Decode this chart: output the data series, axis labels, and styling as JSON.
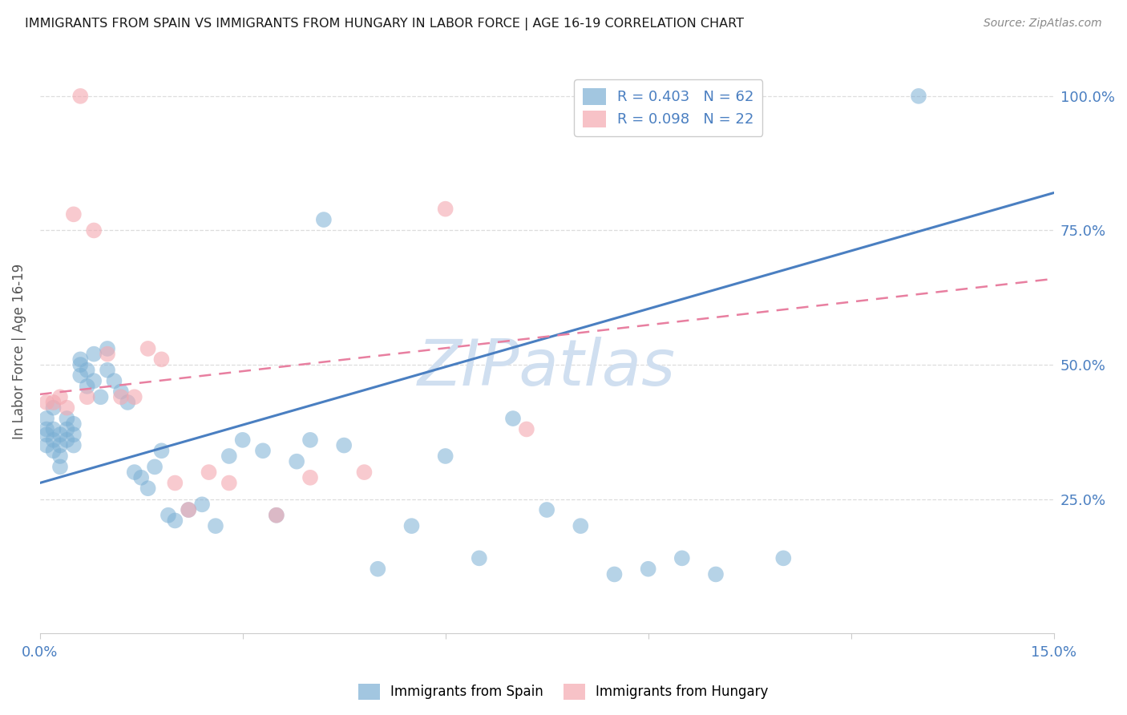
{
  "title": "IMMIGRANTS FROM SPAIN VS IMMIGRANTS FROM HUNGARY IN LABOR FORCE | AGE 16-19 CORRELATION CHART",
  "source": "Source: ZipAtlas.com",
  "ylabel": "In Labor Force | Age 16-19",
  "xlim": [
    0.0,
    0.15
  ],
  "ylim": [
    0.0,
    1.05
  ],
  "xticks": [
    0.0,
    0.03,
    0.06,
    0.09,
    0.12,
    0.15
  ],
  "yticks": [
    0.25,
    0.5,
    0.75,
    1.0
  ],
  "ytick_labels": [
    "25.0%",
    "50.0%",
    "75.0%",
    "100.0%"
  ],
  "xtick_labels": [
    "0.0%",
    "",
    "",
    "",
    "",
    "15.0%"
  ],
  "legend_blue_label": "R = 0.403   N = 62",
  "legend_pink_label": "R = 0.098   N = 22",
  "blue_color": "#7bafd4",
  "pink_color": "#f4a8b0",
  "line_blue_color": "#4a7fc1",
  "line_pink_color": "#e87fa0",
  "axis_label_color": "#4a7fc1",
  "title_color": "#1a1a1a",
  "source_color": "#888888",
  "watermark_text": "ZIPatlas",
  "watermark_color": "#d0dff0",
  "grid_color": "#dddddd",
  "blue_line_x0": 0.0,
  "blue_line_x1": 0.15,
  "blue_line_y0": 0.28,
  "blue_line_y1": 0.82,
  "pink_line_x0": 0.0,
  "pink_line_x1": 0.15,
  "pink_line_y0": 0.445,
  "pink_line_y1": 0.66,
  "blue_x": [
    0.001,
    0.001,
    0.001,
    0.001,
    0.002,
    0.002,
    0.002,
    0.002,
    0.003,
    0.003,
    0.003,
    0.003,
    0.004,
    0.004,
    0.004,
    0.005,
    0.005,
    0.005,
    0.006,
    0.006,
    0.006,
    0.007,
    0.007,
    0.008,
    0.008,
    0.009,
    0.01,
    0.01,
    0.011,
    0.012,
    0.013,
    0.014,
    0.015,
    0.016,
    0.017,
    0.018,
    0.019,
    0.02,
    0.022,
    0.024,
    0.026,
    0.028,
    0.03,
    0.033,
    0.035,
    0.038,
    0.04,
    0.042,
    0.045,
    0.05,
    0.055,
    0.06,
    0.065,
    0.07,
    0.075,
    0.08,
    0.085,
    0.09,
    0.095,
    0.1,
    0.11,
    0.13
  ],
  "blue_y": [
    0.37,
    0.38,
    0.35,
    0.4,
    0.36,
    0.38,
    0.34,
    0.42,
    0.37,
    0.35,
    0.33,
    0.31,
    0.4,
    0.38,
    0.36,
    0.37,
    0.39,
    0.35,
    0.5,
    0.48,
    0.51,
    0.46,
    0.49,
    0.52,
    0.47,
    0.44,
    0.53,
    0.49,
    0.47,
    0.45,
    0.43,
    0.3,
    0.29,
    0.27,
    0.31,
    0.34,
    0.22,
    0.21,
    0.23,
    0.24,
    0.2,
    0.33,
    0.36,
    0.34,
    0.22,
    0.32,
    0.36,
    0.77,
    0.35,
    0.12,
    0.2,
    0.33,
    0.14,
    0.4,
    0.23,
    0.2,
    0.11,
    0.12,
    0.14,
    0.11,
    0.14,
    1.0
  ],
  "pink_x": [
    0.001,
    0.002,
    0.003,
    0.004,
    0.005,
    0.006,
    0.007,
    0.008,
    0.01,
    0.012,
    0.014,
    0.016,
    0.018,
    0.02,
    0.022,
    0.025,
    0.028,
    0.035,
    0.04,
    0.048,
    0.06,
    0.072
  ],
  "pink_y": [
    0.43,
    0.43,
    0.44,
    0.42,
    0.78,
    1.0,
    0.44,
    0.75,
    0.52,
    0.44,
    0.44,
    0.53,
    0.51,
    0.28,
    0.23,
    0.3,
    0.28,
    0.22,
    0.29,
    0.3,
    0.79,
    0.38
  ]
}
